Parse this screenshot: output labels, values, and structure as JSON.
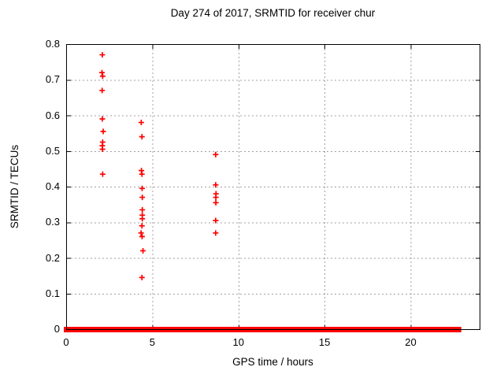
{
  "window": {
    "background": "#ffffff"
  },
  "chart_data": {
    "type": "scatter",
    "title": "Day 274 of 2017, SRMTID for receiver chur",
    "xlabel": "GPS time / hours",
    "ylabel": "SRMTID / TECUs",
    "xlim": [
      0,
      24
    ],
    "ylim": [
      0,
      0.8
    ],
    "x_ticks": [
      0,
      5,
      10,
      15,
      20
    ],
    "x_tick_labels": [
      "0",
      "5",
      "10",
      "15",
      "20"
    ],
    "y_ticks": [
      0,
      0.1,
      0.2,
      0.3,
      0.4,
      0.5,
      0.6,
      0.7,
      0.8
    ],
    "y_tick_labels": [
      "0",
      "0.1",
      "0.2",
      "0.3",
      "0.4",
      "0.5",
      "0.6",
      "0.7",
      "0.8"
    ],
    "grid": true,
    "legend": "none",
    "marker": "plus",
    "colors": {
      "marker": "#ff0000",
      "grid": "#a0a0a0",
      "axis": "#000000",
      "text": "#000000"
    },
    "points": [
      [
        2.1,
        0.77
      ],
      [
        2.08,
        0.72
      ],
      [
        2.12,
        0.71
      ],
      [
        2.09,
        0.67
      ],
      [
        2.1,
        0.59
      ],
      [
        2.15,
        0.555
      ],
      [
        2.12,
        0.525
      ],
      [
        2.1,
        0.515
      ],
      [
        2.11,
        0.505
      ],
      [
        2.12,
        0.435
      ],
      [
        4.36,
        0.58
      ],
      [
        4.4,
        0.54
      ],
      [
        4.37,
        0.445
      ],
      [
        4.4,
        0.435
      ],
      [
        4.41,
        0.395
      ],
      [
        4.42,
        0.37
      ],
      [
        4.42,
        0.335
      ],
      [
        4.42,
        0.32
      ],
      [
        4.42,
        0.31
      ],
      [
        4.4,
        0.29
      ],
      [
        4.35,
        0.27
      ],
      [
        4.41,
        0.26
      ],
      [
        4.46,
        0.22
      ],
      [
        4.4,
        0.145
      ],
      [
        8.68,
        0.49
      ],
      [
        8.68,
        0.405
      ],
      [
        8.7,
        0.38
      ],
      [
        8.69,
        0.37
      ],
      [
        8.69,
        0.355
      ],
      [
        8.68,
        0.305
      ],
      [
        8.68,
        0.27
      ]
    ],
    "zero_line_segments": [
      {
        "x_start": 0.0,
        "x_end": 1.95
      },
      {
        "x_start": 2.18,
        "x_end": 4.28
      },
      {
        "x_start": 4.52,
        "x_end": 22.8
      }
    ],
    "zero_line_note": "Dense overlapping + markers at SRMTID = 0 across the day form a thick red band along the x-axis, with gaps near 2.1 h and 4.4 h"
  }
}
